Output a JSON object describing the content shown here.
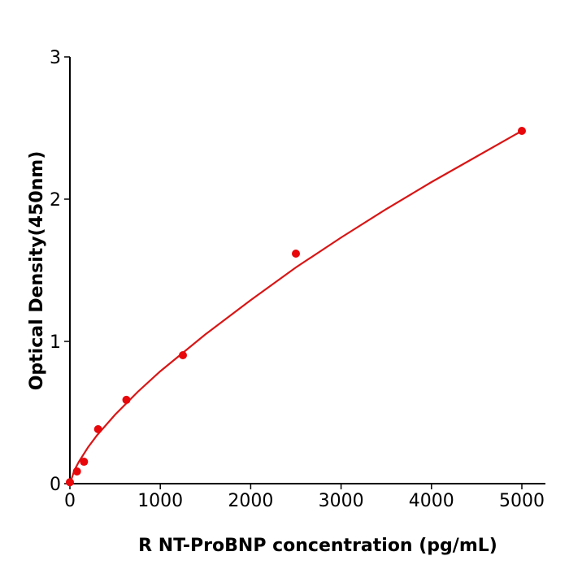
{
  "chart_data": {
    "type": "scatter",
    "title": "",
    "xlabel": "R  NT-ProBNP concentration (pg/mL)",
    "ylabel": "Optical Density(450nm)",
    "xlim": [
      0,
      5260
    ],
    "ylim": [
      0,
      3
    ],
    "xticks": [
      "0",
      "1000",
      "2000",
      "3000",
      "4000",
      "5000"
    ],
    "yticks": [
      "0",
      "1",
      "2",
      "3"
    ],
    "grid": false,
    "colors": {
      "points": "#e8070b",
      "curve": "#d91515",
      "axes": "#000000"
    },
    "series": [
      {
        "type": "scatter",
        "x": [
          0,
          78,
          156,
          312,
          625,
          1250,
          2500,
          5000
        ],
        "y": [
          0.01,
          0.086,
          0.154,
          0.383,
          0.589,
          0.903,
          1.617,
          2.48
        ]
      },
      {
        "type": "line",
        "x": [
          0,
          50,
          100,
          200,
          300,
          500,
          750,
          1000,
          1500,
          2000,
          2500,
          3000,
          3500,
          4000,
          4500,
          5000
        ],
        "y": [
          0,
          0.095,
          0.155,
          0.255,
          0.34,
          0.485,
          0.645,
          0.79,
          1.05,
          1.29,
          1.52,
          1.73,
          1.93,
          2.12,
          2.3,
          2.48
        ]
      }
    ]
  }
}
